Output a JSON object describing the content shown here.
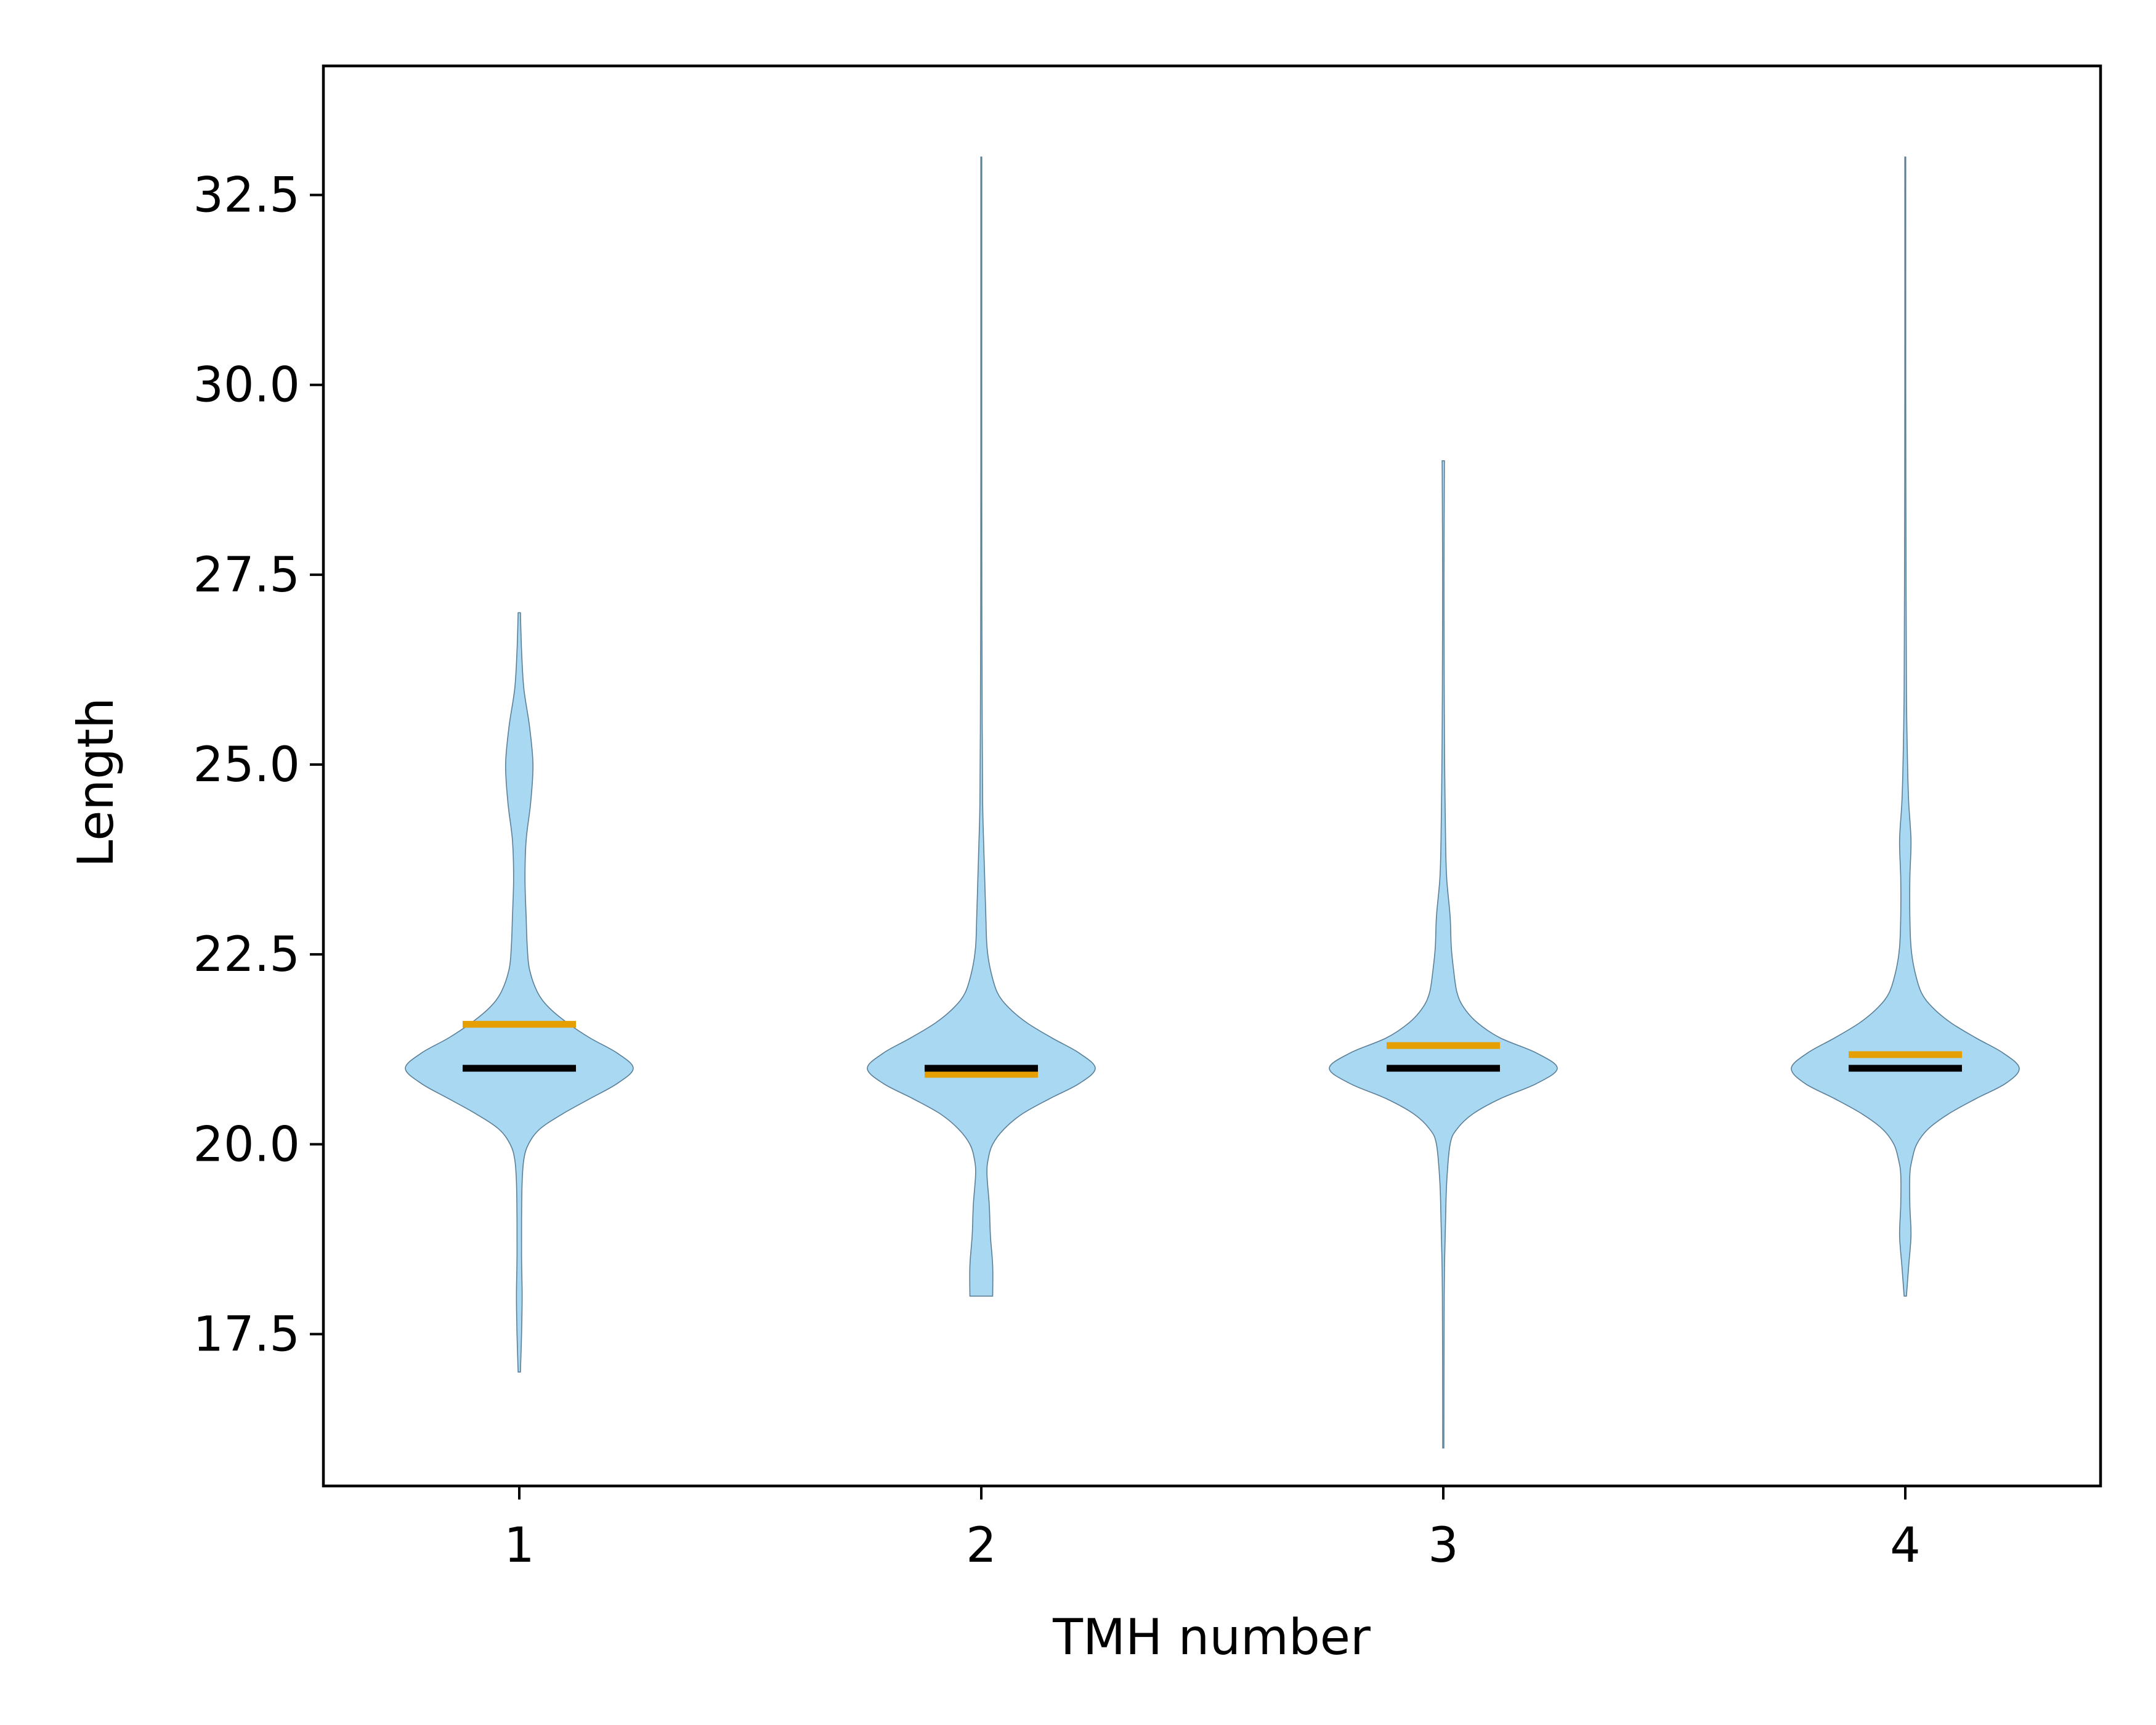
{
  "chart_data": {
    "type": "violin",
    "xlabel": "TMH number",
    "ylabel": "Length",
    "categories": [
      "1",
      "2",
      "3",
      "4"
    ],
    "ylim": [
      15.5,
      34.2
    ],
    "yticks": [
      17.5,
      20.0,
      22.5,
      25.0,
      27.5,
      30.0,
      32.5
    ],
    "ytick_labels": [
      "17.5",
      "20.0",
      "22.5",
      "25.0",
      "27.5",
      "30.0",
      "32.5"
    ],
    "grid": false,
    "colors": {
      "violin_fill": "#a9d8f2",
      "violin_edge": "#5b7f96",
      "median": "#000000",
      "mean": "#e69f00"
    },
    "violins": [
      {
        "category": "1",
        "min": 17.0,
        "max": 27.0,
        "median": 21.0,
        "mean": 21.58,
        "profile": [
          [
            17.0,
            0.01
          ],
          [
            17.5,
            0.02
          ],
          [
            18.0,
            0.025
          ],
          [
            18.5,
            0.02
          ],
          [
            19.0,
            0.02
          ],
          [
            19.5,
            0.025
          ],
          [
            19.8,
            0.04
          ],
          [
            20.0,
            0.08
          ],
          [
            20.2,
            0.18
          ],
          [
            20.4,
            0.38
          ],
          [
            20.6,
            0.62
          ],
          [
            20.8,
            0.86
          ],
          [
            21.0,
            1.0
          ],
          [
            21.2,
            0.86
          ],
          [
            21.4,
            0.62
          ],
          [
            21.6,
            0.42
          ],
          [
            21.8,
            0.26
          ],
          [
            22.0,
            0.16
          ],
          [
            22.3,
            0.09
          ],
          [
            22.6,
            0.07
          ],
          [
            23.0,
            0.06
          ],
          [
            23.5,
            0.05
          ],
          [
            24.0,
            0.06
          ],
          [
            24.5,
            0.1
          ],
          [
            25.0,
            0.12
          ],
          [
            25.5,
            0.09
          ],
          [
            26.0,
            0.04
          ],
          [
            26.5,
            0.02
          ],
          [
            27.0,
            0.01
          ]
        ]
      },
      {
        "category": "2",
        "min": 18.0,
        "max": 33.0,
        "median": 21.0,
        "mean": 20.92,
        "profile": [
          [
            18.0,
            0.1
          ],
          [
            18.4,
            0.1
          ],
          [
            18.8,
            0.08
          ],
          [
            19.2,
            0.07
          ],
          [
            19.6,
            0.05
          ],
          [
            19.8,
            0.06
          ],
          [
            20.0,
            0.1
          ],
          [
            20.2,
            0.2
          ],
          [
            20.4,
            0.36
          ],
          [
            20.6,
            0.6
          ],
          [
            20.8,
            0.86
          ],
          [
            21.0,
            1.0
          ],
          [
            21.2,
            0.86
          ],
          [
            21.4,
            0.62
          ],
          [
            21.6,
            0.4
          ],
          [
            21.8,
            0.24
          ],
          [
            22.0,
            0.14
          ],
          [
            22.3,
            0.08
          ],
          [
            22.6,
            0.05
          ],
          [
            23.0,
            0.04
          ],
          [
            23.5,
            0.03
          ],
          [
            24.0,
            0.02
          ],
          [
            24.5,
            0.012
          ],
          [
            25.5,
            0.008
          ],
          [
            27.0,
            0.005
          ],
          [
            29.0,
            0.004
          ],
          [
            31.0,
            0.004
          ],
          [
            33.0,
            0.004
          ]
        ]
      },
      {
        "category": "3",
        "min": 16.0,
        "max": 29.0,
        "median": 21.0,
        "mean": 21.3,
        "profile": [
          [
            16.0,
            0.005
          ],
          [
            17.0,
            0.006
          ],
          [
            18.0,
            0.008
          ],
          [
            18.5,
            0.012
          ],
          [
            19.0,
            0.02
          ],
          [
            19.5,
            0.03
          ],
          [
            20.0,
            0.06
          ],
          [
            20.2,
            0.12
          ],
          [
            20.4,
            0.26
          ],
          [
            20.6,
            0.5
          ],
          [
            20.8,
            0.82
          ],
          [
            21.0,
            1.0
          ],
          [
            21.2,
            0.82
          ],
          [
            21.4,
            0.5
          ],
          [
            21.6,
            0.3
          ],
          [
            21.8,
            0.18
          ],
          [
            22.0,
            0.12
          ],
          [
            22.3,
            0.09
          ],
          [
            22.6,
            0.07
          ],
          [
            23.0,
            0.06
          ],
          [
            23.5,
            0.03
          ],
          [
            24.0,
            0.02
          ],
          [
            25.0,
            0.012
          ],
          [
            26.0,
            0.008
          ],
          [
            27.5,
            0.006
          ],
          [
            29.0,
            0.01
          ]
        ]
      },
      {
        "category": "4",
        "min": 18.0,
        "max": 33.0,
        "median": 21.0,
        "mean": 21.18,
        "profile": [
          [
            18.0,
            0.01
          ],
          [
            18.4,
            0.03
          ],
          [
            18.8,
            0.05
          ],
          [
            19.2,
            0.04
          ],
          [
            19.6,
            0.04
          ],
          [
            19.8,
            0.06
          ],
          [
            20.0,
            0.1
          ],
          [
            20.2,
            0.2
          ],
          [
            20.4,
            0.38
          ],
          [
            20.6,
            0.62
          ],
          [
            20.8,
            0.88
          ],
          [
            21.0,
            1.0
          ],
          [
            21.2,
            0.86
          ],
          [
            21.4,
            0.62
          ],
          [
            21.6,
            0.4
          ],
          [
            21.8,
            0.24
          ],
          [
            22.0,
            0.14
          ],
          [
            22.3,
            0.08
          ],
          [
            22.6,
            0.05
          ],
          [
            23.0,
            0.04
          ],
          [
            23.5,
            0.04
          ],
          [
            24.0,
            0.05
          ],
          [
            24.5,
            0.03
          ],
          [
            25.0,
            0.02
          ],
          [
            26.0,
            0.01
          ],
          [
            28.0,
            0.006
          ],
          [
            30.0,
            0.004
          ],
          [
            33.0,
            0.004
          ]
        ]
      }
    ]
  }
}
